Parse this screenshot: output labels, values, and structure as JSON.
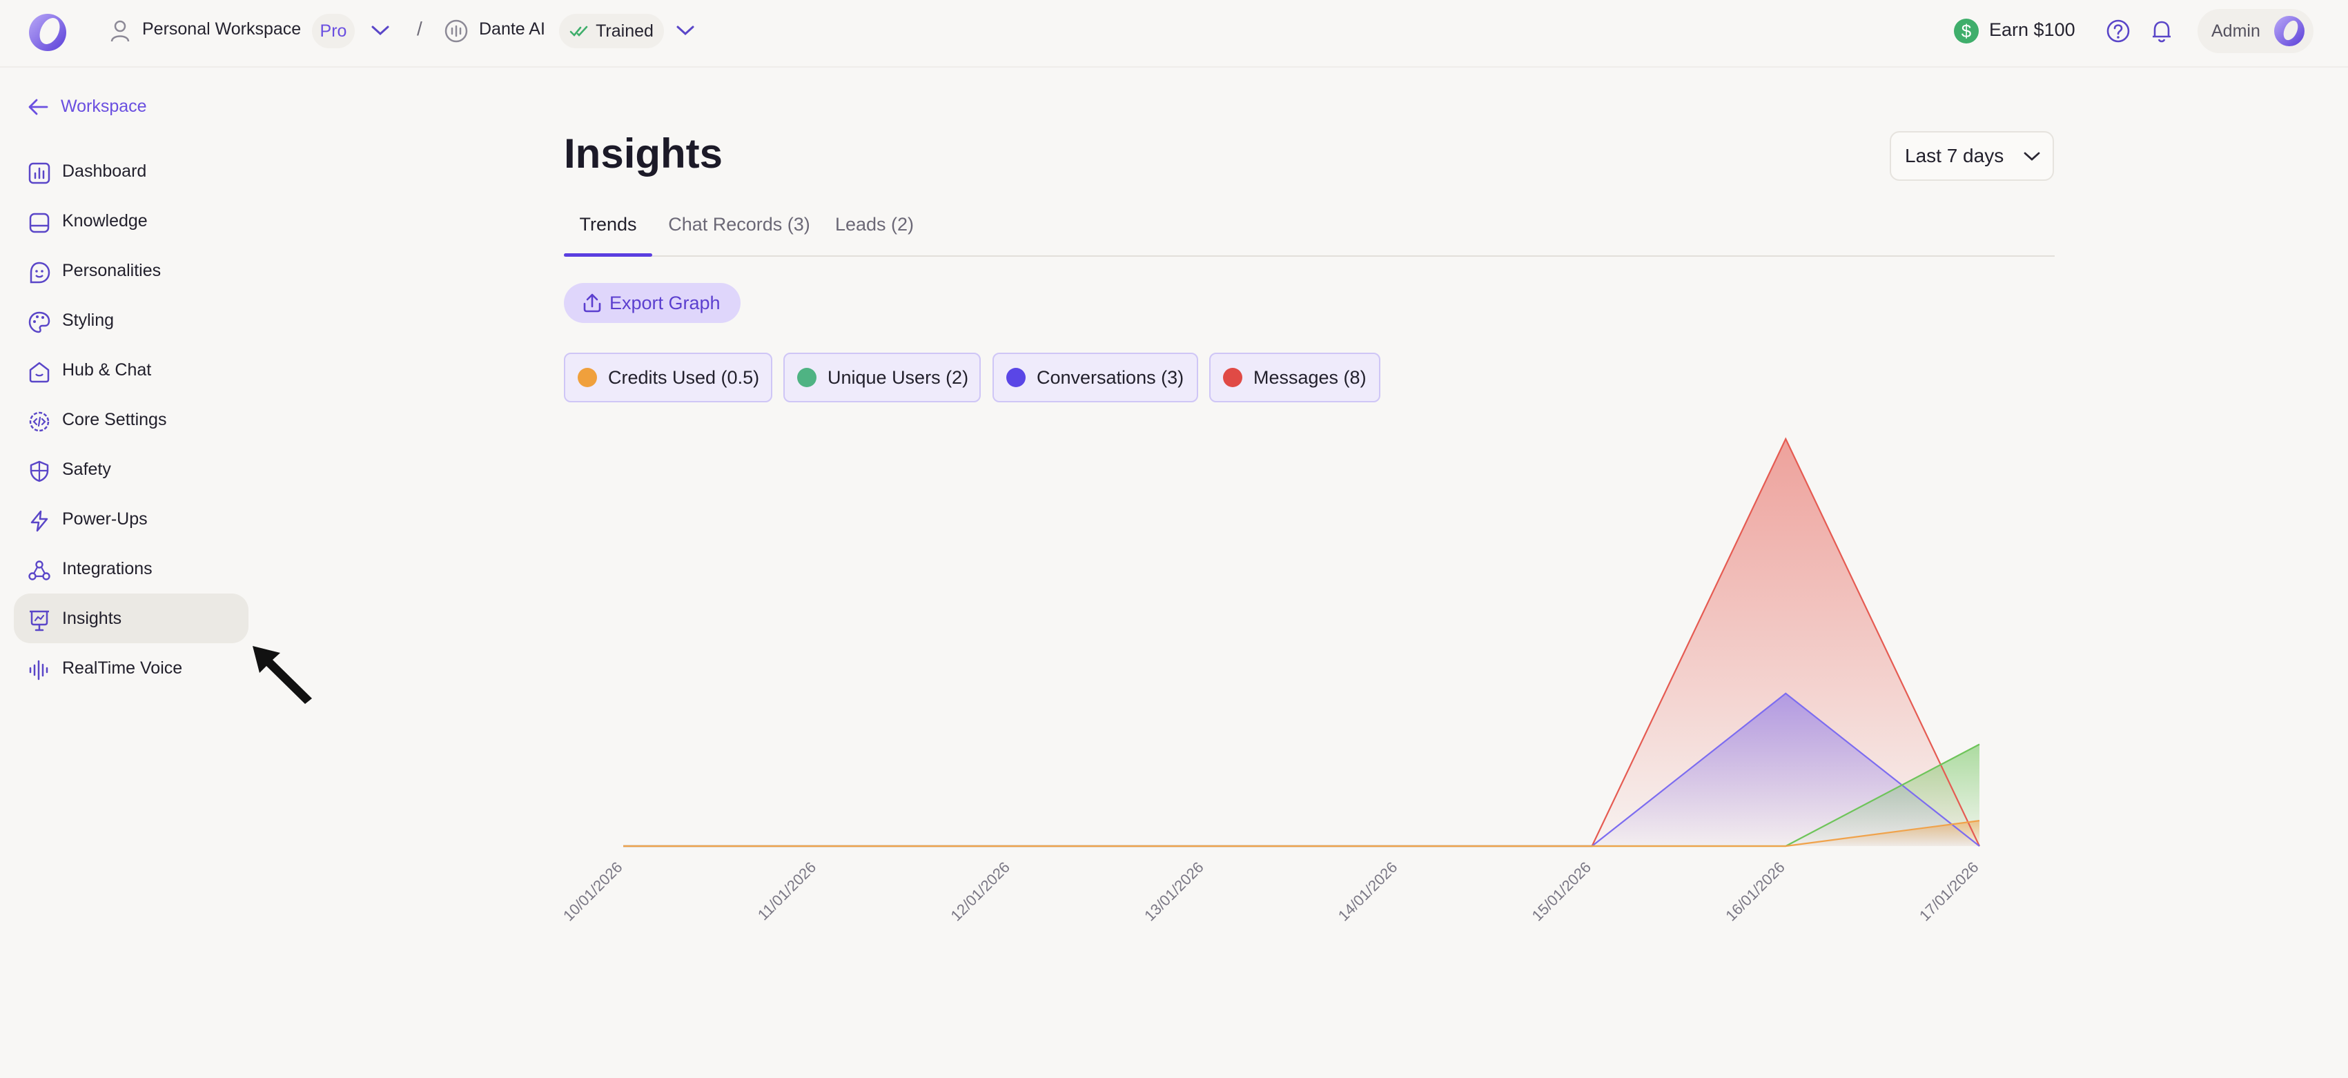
{
  "header": {
    "workspace_name": "Personal Workspace",
    "workspace_plan": "Pro",
    "separator": "/",
    "agent_name": "Dante AI",
    "agent_status": "Trained",
    "earn_label": "Earn $100",
    "user_label": "Admin",
    "accent_color": "#6a4fe0"
  },
  "sidebar": {
    "back_label": "Workspace",
    "items": [
      {
        "label": "Dashboard",
        "icon": "chart-bars-icon"
      },
      {
        "label": "Knowledge",
        "icon": "database-icon"
      },
      {
        "label": "Personalities",
        "icon": "face-icon"
      },
      {
        "label": "Styling",
        "icon": "palette-icon"
      },
      {
        "label": "Hub & Chat",
        "icon": "home-chat-icon"
      },
      {
        "label": "Core Settings",
        "icon": "code-gear-icon"
      },
      {
        "label": "Safety",
        "icon": "shield-icon"
      },
      {
        "label": "Power-Ups",
        "icon": "lightning-icon"
      },
      {
        "label": "Integrations",
        "icon": "integrations-icon"
      },
      {
        "label": "Insights",
        "icon": "presentation-icon",
        "active": true
      },
      {
        "label": "RealTime Voice",
        "icon": "waveform-icon"
      }
    ]
  },
  "main": {
    "title": "Insights",
    "range": "Last 7 days",
    "tabs": [
      {
        "label": "Trends",
        "active": true
      },
      {
        "label": "Chat Records (3)"
      },
      {
        "label": "Leads (2)"
      }
    ],
    "export_label": "Export Graph",
    "legend": [
      {
        "label": "Credits Used (0.5)",
        "color": "#f0a03c"
      },
      {
        "label": "Unique Users (2)",
        "color": "#4fb383"
      },
      {
        "label": "Conversations (3)",
        "color": "#5a46e6"
      },
      {
        "label": "Messages (8)",
        "color": "#e04a45"
      }
    ]
  },
  "chart_data": {
    "type": "area",
    "categories": [
      "10/01/2026",
      "11/01/2026",
      "12/01/2026",
      "13/01/2026",
      "14/01/2026",
      "15/01/2026",
      "16/01/2026",
      "17/01/2026"
    ],
    "series": [
      {
        "name": "Messages",
        "color": "#e55b52",
        "values": [
          0,
          0,
          0,
          0,
          0,
          0,
          8,
          0
        ]
      },
      {
        "name": "Conversations",
        "color": "#7c6cf0",
        "values": [
          0,
          0,
          0,
          0,
          0,
          0,
          3,
          0
        ]
      },
      {
        "name": "Unique Users",
        "color": "#6ec45a",
        "values": [
          0,
          0,
          0,
          0,
          0,
          0,
          0,
          2
        ]
      },
      {
        "name": "Credits Used",
        "color": "#f0a24a",
        "values": [
          0,
          0,
          0,
          0,
          0,
          0,
          0,
          0.5
        ]
      }
    ],
    "ylim": [
      0,
      8
    ],
    "grid": false,
    "legend": "top"
  },
  "annotation": {
    "arrow": "pointer-arrow"
  }
}
